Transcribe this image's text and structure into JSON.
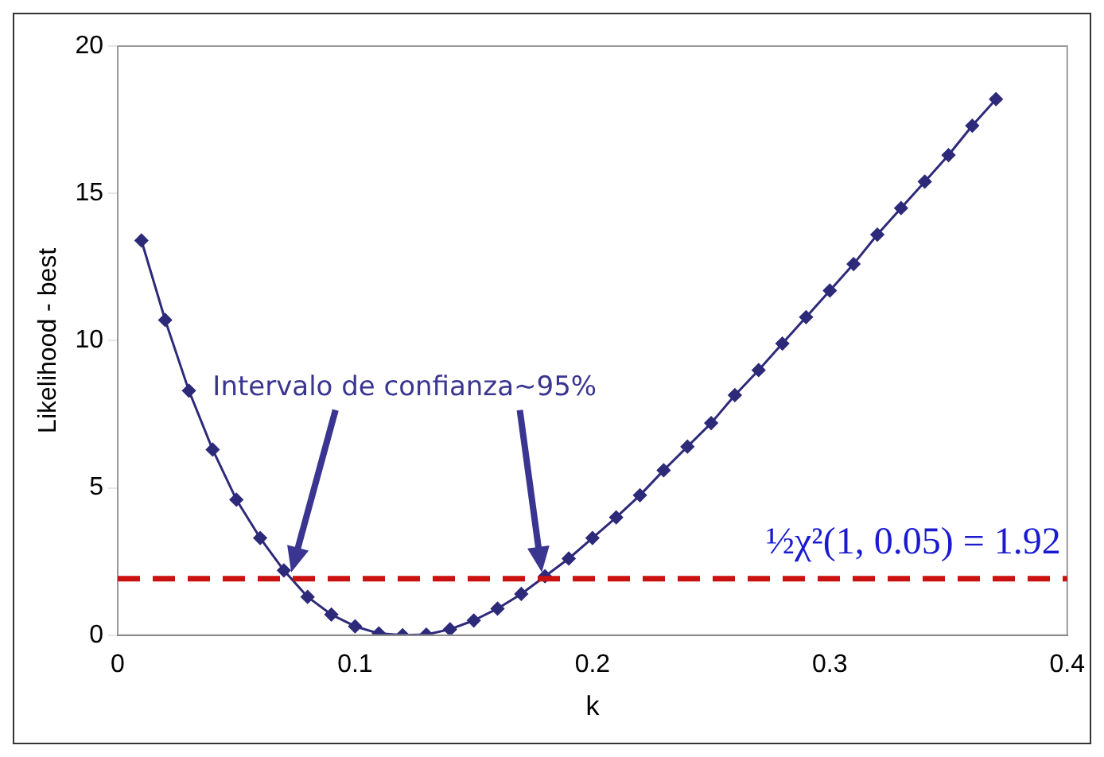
{
  "chart_data": {
    "type": "line",
    "xlabel": "k",
    "ylabel": "Likelihood - best",
    "x": [
      0.01,
      0.02,
      0.03,
      0.04,
      0.05,
      0.06,
      0.07,
      0.08,
      0.09,
      0.1,
      0.11,
      0.12,
      0.13,
      0.14,
      0.15,
      0.16,
      0.17,
      0.18,
      0.19,
      0.2,
      0.21,
      0.22,
      0.23,
      0.24,
      0.25,
      0.26,
      0.27,
      0.28,
      0.29,
      0.3,
      0.31,
      0.32,
      0.33,
      0.34,
      0.35,
      0.36,
      0.37
    ],
    "series": [
      {
        "color": "#2e2a7a",
        "values": [
          13.4,
          10.7,
          8.3,
          6.3,
          4.6,
          3.3,
          2.2,
          1.3,
          0.7,
          0.3,
          0.06,
          0,
          0.02,
          0.2,
          0.5,
          0.9,
          1.4,
          2.0,
          2.6,
          3.3,
          4.0,
          4.75,
          5.6,
          6.4,
          7.2,
          8.15,
          9.0,
          9.9,
          10.8,
          11.7,
          12.6,
          13.6,
          14.5,
          15.4,
          16.3,
          17.3,
          18.2
        ]
      }
    ],
    "xlim": [
      0,
      0.4
    ],
    "xticks": [
      0,
      0.1,
      0.2,
      0.3,
      0.4
    ],
    "ylim": [
      0,
      20
    ],
    "yticks": [
      0,
      5,
      10,
      15,
      20
    ],
    "grid": false,
    "legend": false,
    "marker": "diamond",
    "line_style": "solid",
    "ref_lines": [
      {
        "axis": "y",
        "value": 1.92,
        "label": "½χ²(1, 0.05) = 1.92",
        "color": "#cc1111",
        "line_style": "dashed"
      }
    ],
    "annotations": [
      "Intervalo de confianza~95%"
    ]
  }
}
